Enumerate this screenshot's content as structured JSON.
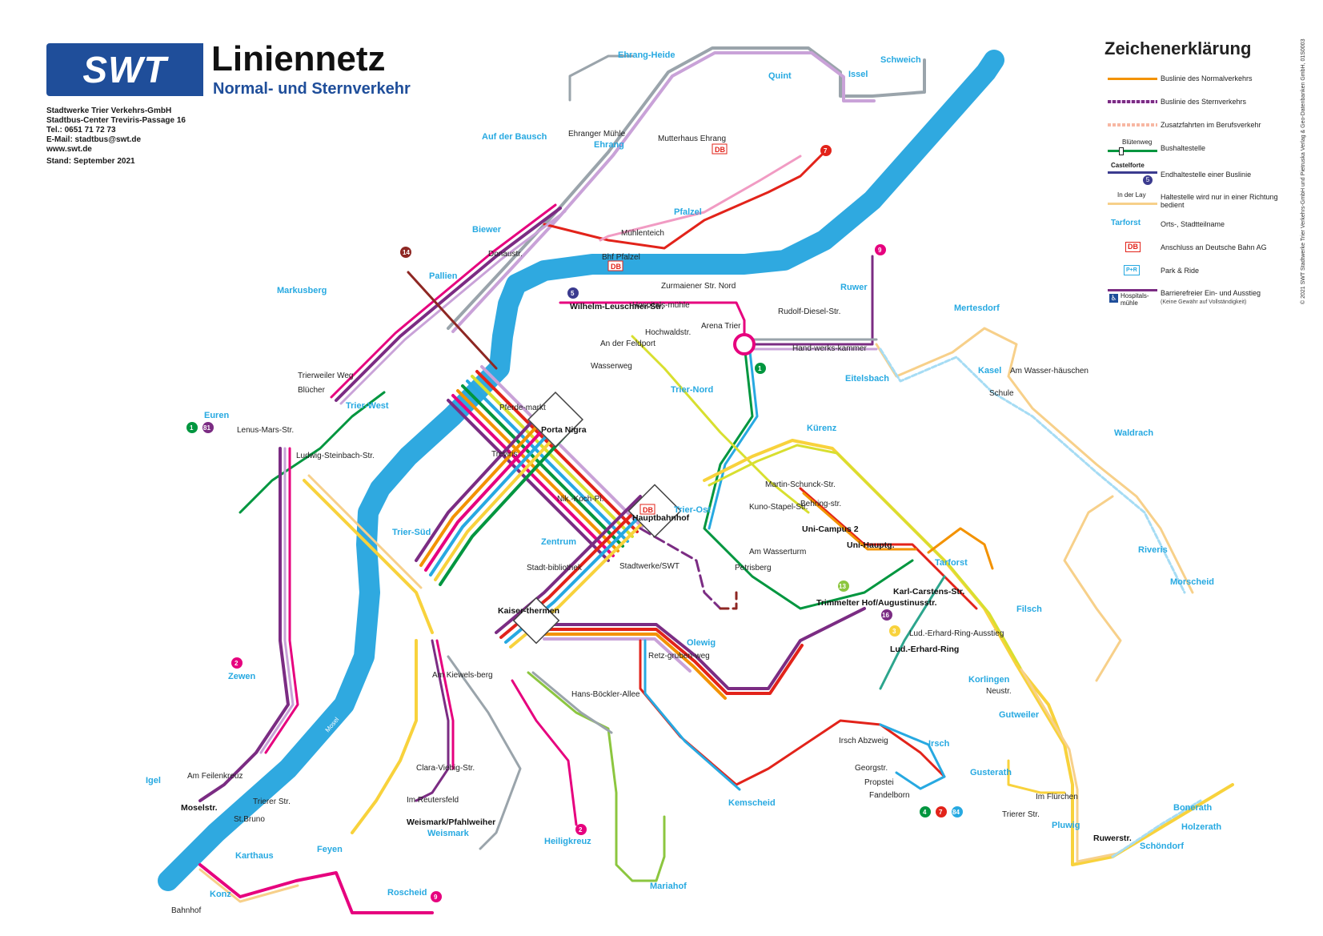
{
  "header": {
    "logo_text": "SWT",
    "title": "Liniennetz",
    "subtitle": "Normal- und Sternverkehr",
    "contact": [
      "Stadtwerke Trier Verkehrs-GmbH",
      "Stadtbus-Center Treviris-Passage 16",
      "Tel.: 0651 71 72 73",
      "E-Mail: stadtbus@swt.de",
      "www.swt.de"
    ],
    "stand": "Stand: September 2021"
  },
  "legend": {
    "title": "Zeichenerklärung",
    "items": [
      {
        "symbol": "line-normal",
        "text": "Buslinie des Normalverkehrs"
      },
      {
        "symbol": "line-stern",
        "text": "Buslinie des Sternverkehrs"
      },
      {
        "symbol": "line-extra",
        "text": "Zusatzfahrten im Berufsverkehr"
      },
      {
        "symbol": "stop",
        "sample": "Blütenweg",
        "text": "Bushaltestelle"
      },
      {
        "symbol": "terminal",
        "sample": "Castelforte",
        "badge": "5",
        "text": "Endhaltestelle einer Buslinie"
      },
      {
        "symbol": "oneway",
        "sample": "In der Lay",
        "text": "Haltestelle wird nur in einer Richtung bedient"
      },
      {
        "symbol": "district",
        "sample": "Tarforst",
        "text": "Orts-, Stadtteilname"
      },
      {
        "symbol": "db",
        "sample": "DB",
        "text": "Anschluss an Deutsche Bahn AG"
      },
      {
        "symbol": "pr",
        "sample": "P+R",
        "text": "Park & Ride"
      },
      {
        "symbol": "barrier",
        "sample": "Hospitals-mühle",
        "text": "Barrierefreier Ein- und Ausstieg",
        "note": "(Keine Gewähr auf Vollständigkeit)"
      }
    ]
  },
  "copyright": "© 2021 SWT Stadtwerke Trier Verkehrs-GmbH und Pietruska Verlag & Geo-Datenbanken GmbH, 01S0003",
  "river": {
    "label_upper": "Mosel",
    "label_lower": "Mosel"
  },
  "colors": {
    "river": "#2fa9e0",
    "brand": "#1f4e9a",
    "district": "#27a9e1",
    "db": "#e2231a",
    "orange": "#f39200",
    "purple": "#7b2c83"
  },
  "districts": [
    "Ehrang-Heide",
    "Schweich",
    "Quint",
    "Issel",
    "Auf der Bausch",
    "Ehrang",
    "Biewer",
    "Pfalzel",
    "Pallien",
    "Markusberg",
    "Ruwer",
    "Mertesdorf",
    "Euren",
    "Trier-West",
    "Trier-Nord",
    "Kasel",
    "Eitelsbach",
    "Kürenz",
    "Waldrach",
    "Trier-Süd",
    "Zentrum",
    "Trier-Ost",
    "Tarforst",
    "Riveris",
    "Morscheid",
    "Filsch",
    "Zewen",
    "Olewig",
    "Korlingen",
    "Gutweiler",
    "Irsch",
    "Igel",
    "Kemscheid",
    "Gusterath",
    "Heiligkreuz",
    "Feyen",
    "Karthaus",
    "Konz",
    "Roscheid",
    "Weismark",
    "Mariahof",
    "Pluwig",
    "Bonerath",
    "Holzerath",
    "Schöndorf"
  ],
  "stops": [
    "Ehranger Mühle",
    "Mutterhaus Ehrang",
    "Mühlenteich",
    "Bhf Pfalzel",
    "Donaustr.",
    "Zurmaiener Str. Nord",
    "Wilhelm-Leuschner-Str.",
    "Hospitals-mühle",
    "Hochwaldstr.",
    "Arena Trier",
    "Rudolf-Diesel-Str.",
    "An der Feldport",
    "Hand-werks-kammer",
    "Wasserweg",
    "Am Wasser-häuschen",
    "Schule",
    "Trierweiler Weg",
    "Blücher",
    "Lenus-Mars-Str.",
    "Pferde-markt",
    "Porta Nigra",
    "Treviris",
    "Ludwig-Steinbach-Str.",
    "Martin-Schunck-Str.",
    "Nik.-Koch-Pl.",
    "Hauptbahnhof",
    "Kuno-Stapel-Str.",
    "Behring-str.",
    "Uni-Campus 2",
    "Uni-Hauptg.",
    "Am Wasserturm",
    "Petrisberg",
    "Stadt-bibliothek",
    "Stadtwerke/SWT",
    "Trimmelter Hof/Augustinusstr.",
    "Karl-Carstens-Str.",
    "Kaiser-thermen",
    "Lud.-Erhard-Ring-Ausstieg",
    "Lud.-Erhard-Ring",
    "Retz-gruben-weg",
    "Am Kiewels-berg",
    "Hans-Böckler-Allee",
    "Neustr.",
    "Irsch Abzweig",
    "Georgstr.",
    "Propstei",
    "Fandelborn",
    "Am Feilenkreuz",
    "Moselstr.",
    "Trierer Str.",
    "St.Bruno",
    "Clara-Viebig-Str.",
    "Im Reutersfeld",
    "Weismark/Pfahlweiher",
    "Im Flürchen",
    "Trierer Str.",
    "Ruwerstr.",
    "Bahnhof"
  ]
}
